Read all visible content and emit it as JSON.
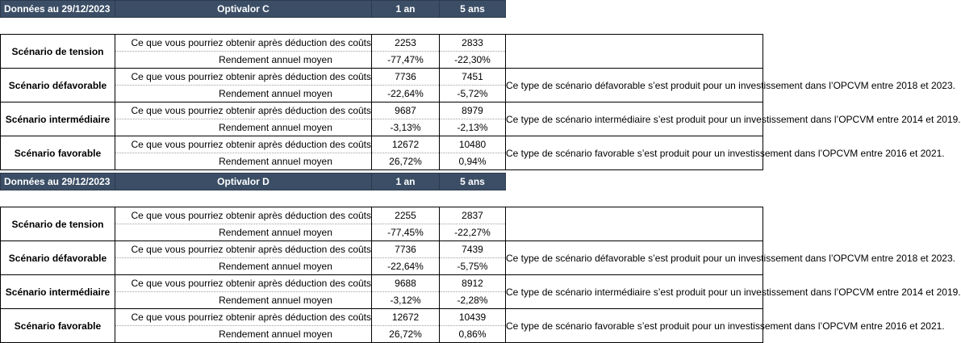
{
  "tables": [
    {
      "header": {
        "date": "Données au 29/12/2023",
        "fund": "Optivalor C",
        "col1": "1 an",
        "col2": "5 ans"
      },
      "scenarios": [
        {
          "name": "Scénario de tension",
          "obtain_label": "Ce que vous pourriez obtenir après déduction des coûts",
          "obtain_1": "2253",
          "obtain_5": "2833",
          "yield_label": "Rendement annuel moyen",
          "yield_1": "-77,47%",
          "yield_5": "-22,30%",
          "comment": ""
        },
        {
          "name": "Scénario défavorable",
          "obtain_label": "Ce que vous pourriez obtenir après déduction des coûts",
          "obtain_1": "7736",
          "obtain_5": "7451",
          "yield_label": "Rendement annuel moyen",
          "yield_1": "-22,64%",
          "yield_5": "-5,72%",
          "comment": "Ce type de scénario défavorable s’est produit pour un investissement dans l’OPCVM entre 2018 et 2023."
        },
        {
          "name": "Scénario intermédiaire",
          "obtain_label": "Ce que vous pourriez obtenir après déduction des coûts",
          "obtain_1": "9687",
          "obtain_5": "8979",
          "yield_label": "Rendement annuel moyen",
          "yield_1": "-3,13%",
          "yield_5": "-2,13%",
          "comment": "Ce type de scénario intermédiaire s’est produit pour un investissement dans l’OPCVM entre 2014 et 2019."
        },
        {
          "name": "Scénario favorable",
          "obtain_label": "Ce que vous pourriez obtenir après déduction des coûts",
          "obtain_1": "12672",
          "obtain_5": "10480",
          "yield_label": "Rendement annuel moyen",
          "yield_1": "26,72%",
          "yield_5": "0,94%",
          "comment": "Ce type de scénario favorable s’est produit pour un investissement dans l’OPCVM entre 2016 et 2021."
        }
      ]
    },
    {
      "header": {
        "date": "Données au 29/12/2023",
        "fund": "Optivalor D",
        "col1": "1 an",
        "col2": "5 ans"
      },
      "scenarios": [
        {
          "name": "Scénario de tension",
          "obtain_label": "Ce que vous pourriez obtenir après déduction des coûts",
          "obtain_1": "2255",
          "obtain_5": "2837",
          "yield_label": "Rendement annuel moyen",
          "yield_1": "-77,45%",
          "yield_5": "-22,27%",
          "comment": ""
        },
        {
          "name": "Scénario défavorable",
          "obtain_label": "Ce que vous pourriez obtenir après déduction des coûts",
          "obtain_1": "7736",
          "obtain_5": "7439",
          "yield_label": "Rendement annuel moyen",
          "yield_1": "-22,64%",
          "yield_5": "-5,75%",
          "comment": "Ce type de scénario défavorable s’est produit pour un investissement dans l’OPCVM entre 2018 et 2023."
        },
        {
          "name": "Scénario intermédiaire",
          "obtain_label": "Ce que vous pourriez obtenir après déduction des coûts",
          "obtain_1": "9688",
          "obtain_5": "8912",
          "yield_label": "Rendement annuel moyen",
          "yield_1": "-3,12%",
          "yield_5": "-2,28%",
          "comment": "Ce type de scénario intermédiaire s’est produit pour un investissement dans l’OPCVM entre 2014 et 2019."
        },
        {
          "name": "Scénario favorable",
          "obtain_label": "Ce que vous pourriez obtenir après déduction des coûts",
          "obtain_1": "12672",
          "obtain_5": "10439",
          "yield_label": "Rendement annuel moyen",
          "yield_1": "26,72%",
          "yield_5": "0,86%",
          "comment": "Ce type de scénario favorable s’est produit pour un investissement dans l’OPCVM entre 2016 et 2021."
        }
      ]
    }
  ]
}
